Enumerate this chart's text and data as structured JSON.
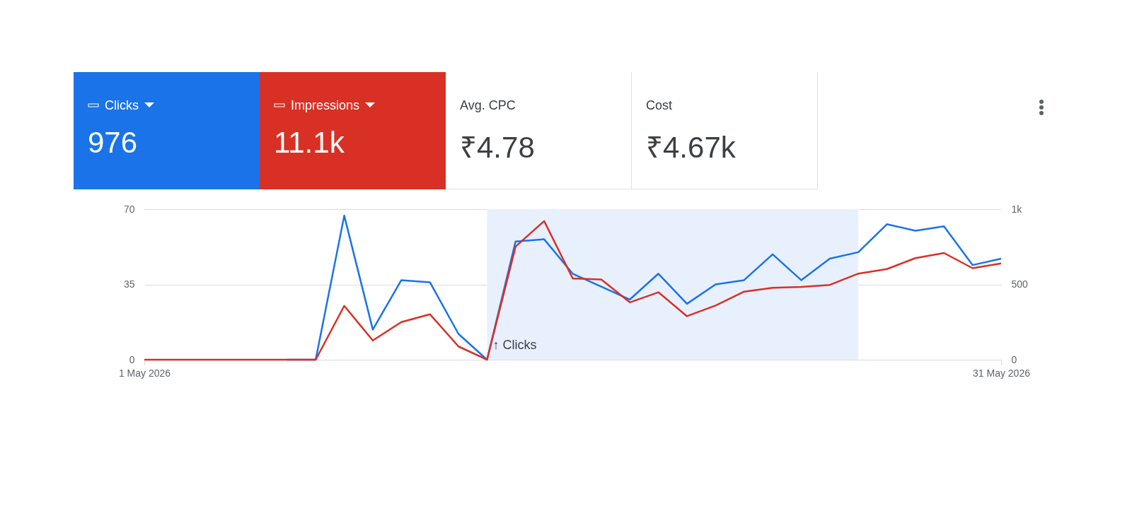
{
  "chart_data": {
    "type": "line",
    "x": [
      "2026-05-01",
      "2026-05-02",
      "2026-05-03",
      "2026-05-04",
      "2026-05-05",
      "2026-05-06",
      "2026-05-07",
      "2026-05-08",
      "2026-05-09",
      "2026-05-10",
      "2026-05-11",
      "2026-05-12",
      "2026-05-13",
      "2026-05-14",
      "2026-05-15",
      "2026-05-16",
      "2026-05-17",
      "2026-05-18",
      "2026-05-19",
      "2026-05-20",
      "2026-05-21",
      "2026-05-22",
      "2026-05-23",
      "2026-05-24",
      "2026-05-25",
      "2026-05-26",
      "2026-05-27",
      "2026-05-28",
      "2026-05-29",
      "2026-05-30",
      "2026-05-31"
    ],
    "series": [
      {
        "name": "Clicks",
        "color": "#1a73e8",
        "values": [
          null,
          null,
          null,
          null,
          null,
          0,
          0,
          67,
          14,
          37,
          36,
          12,
          0,
          55,
          56,
          40,
          34,
          28,
          40,
          26,
          35,
          37,
          49,
          37,
          47,
          50,
          63,
          60,
          62,
          44,
          47
        ]
      },
      {
        "name": "Impressions",
        "color": "#d93025",
        "axis": "y2",
        "values": [
          0,
          0,
          0,
          0,
          0,
          0,
          0,
          358,
          128,
          250,
          302,
          88,
          0,
          752,
          921,
          540,
          533,
          381,
          448,
          289,
          360,
          452,
          478,
          484,
          497,
          572,
          602,
          675,
          709,
          608,
          640
        ]
      }
    ],
    "xlim": [
      "2026-05-01",
      "2026-05-31"
    ],
    "xticks": [
      {
        "value": "2026-05-01",
        "label": "1 May 2026"
      },
      {
        "value": "2026-05-31",
        "label": "31 May 2026"
      }
    ],
    "ylim": [
      0,
      70
    ],
    "yticks": [
      0,
      35,
      70
    ],
    "y2lim": [
      0,
      1000
    ],
    "y2ticks": [
      0,
      500,
      {
        "value": 1000,
        "label": "1k"
      }
    ],
    "grid": "y",
    "legend": "top left",
    "line_style": "solid",
    "bands": [
      {
        "axis": "x",
        "from": "2026-05-13",
        "to": "2026-05-26",
        "color": "#e8f0fe"
      }
    ],
    "annotations": [
      "976",
      "11.1k",
      "Avg. CPC",
      "₹4.78",
      "Cost",
      "₹4.67k",
      {
        "text": "↑ Clicks",
        "x": "2026-05-13",
        "y": 6
      }
    ]
  }
}
